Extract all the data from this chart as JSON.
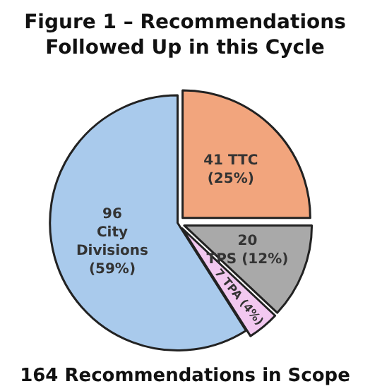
{
  "chart_data": {
    "type": "pie",
    "title": "Figure 1 – Recommendations\nFollowed Up in this Cycle",
    "categories": [
      "41 TTC\n(25%)",
      "20\nTPS (12%)",
      "7 TPA (4%)",
      "96\nCity\nDivisions\n(59%)"
    ],
    "values": [
      25,
      12,
      4,
      59
    ],
    "colors": [
      "#f2a57d",
      "#a9a9a9",
      "#f2c8f0",
      "#a9caec"
    ],
    "annotations": [
      "164 Recommendations in Scope"
    ],
    "legend": false
  }
}
